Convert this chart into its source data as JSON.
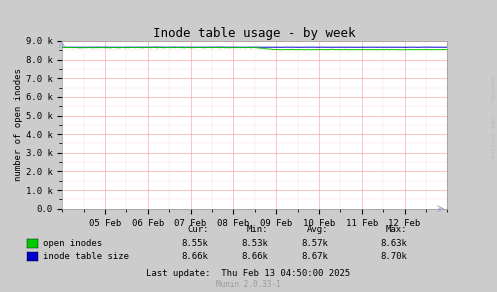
{
  "title": "Inode table usage - by week",
  "ylabel": "number of open inodes",
  "background_color": "#cccccc",
  "plot_bg_color": "#ffffff",
  "grid_color_major": "#ffaaaa",
  "grid_color_minor": "#ffdddd",
  "x_labels": [
    "05 Feb",
    "06 Feb",
    "07 Feb",
    "08 Feb",
    "09 Feb",
    "10 Feb",
    "11 Feb",
    "12 Feb"
  ],
  "x_ticks": [
    1,
    2,
    3,
    4,
    5,
    6,
    7,
    8
  ],
  "ylim": [
    0,
    9000
  ],
  "yticks": [
    0,
    1000,
    2000,
    3000,
    4000,
    5000,
    6000,
    7000,
    8000,
    9000
  ],
  "ytick_labels": [
    "0.0",
    "1.0 k",
    "2.0 k",
    "3.0 k",
    "4.0 k",
    "5.0 k",
    "6.0 k",
    "7.0 k",
    "8.0 k",
    "9.0 k"
  ],
  "open_inodes_color": "#00cc00",
  "inode_table_color": "#0000cc",
  "open_inodes_cur": "8.55k",
  "open_inodes_min_str": "8.53k",
  "open_inodes_avg_str": "8.57k",
  "open_inodes_max_str": "8.63k",
  "inode_table_cur": "8.66k",
  "inode_table_min_str": "8.66k",
  "inode_table_avg_str": "8.67k",
  "inode_table_max_str": "8.70k",
  "last_update": "Last update:  Thu Feb 13 04:50:00 2025",
  "munin_version": "Munin 2.0.33-1",
  "rrdtool_label": "RRDTOOL / TOBI OETIKER",
  "font_color": "#000000",
  "title_fontsize": 9,
  "axis_fontsize": 6.5,
  "legend_fontsize": 6.5,
  "table_fontsize": 6.5
}
